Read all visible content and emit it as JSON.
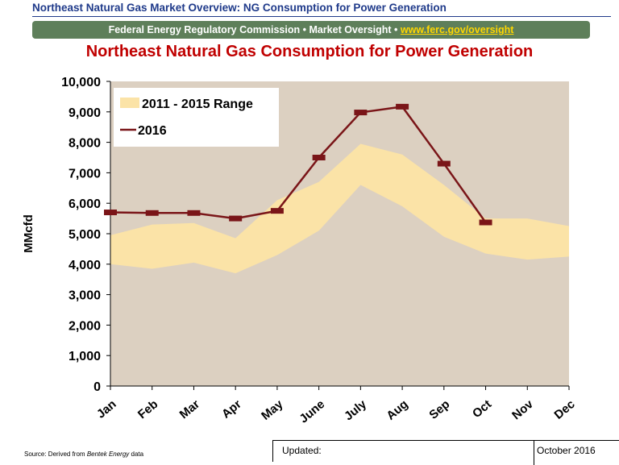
{
  "header": {
    "title": "Northeast Natural Gas Market Overview: NG Consumption for Power Generation",
    "banner_text": "Federal Energy Regulatory Commission • Market Oversight • ",
    "banner_link": "www.ferc.gov/oversight"
  },
  "chart_data": {
    "type": "area",
    "title": "Northeast Natural Gas Consumption for Power Generation",
    "ylabel": "MMcfd",
    "xlabel": "",
    "ylim": [
      0,
      10000
    ],
    "yticks": [
      0,
      1000,
      2000,
      3000,
      4000,
      5000,
      6000,
      7000,
      8000,
      9000,
      10000
    ],
    "ytick_labels": [
      "0",
      "1,000",
      "2,000",
      "3,000",
      "4,000",
      "5,000",
      "6,000",
      "7,000",
      "8,000",
      "9,000",
      "10,000"
    ],
    "categories": [
      "Jan",
      "Feb",
      "Mar",
      "Apr",
      "May",
      "June",
      "July",
      "Aug",
      "Sep",
      "Oct",
      "Nov",
      "Dec"
    ],
    "series": [
      {
        "name": "2011 - 2015 Range",
        "kind": "range",
        "low": [
          4000,
          3850,
          4050,
          3700,
          4300,
          5100,
          6600,
          5900,
          4900,
          4350,
          4150,
          4250
        ],
        "high": [
          4950,
          5300,
          5350,
          4850,
          6100,
          6700,
          7950,
          7600,
          6600,
          5500,
          5500,
          5250
        ]
      },
      {
        "name": "2016",
        "kind": "line",
        "values": [
          5700,
          5680,
          5680,
          5500,
          5750,
          7500,
          8980,
          9170,
          7300,
          5370,
          null,
          null
        ]
      }
    ],
    "legend": {
      "position": "top-left"
    },
    "colors": {
      "range": "#fbe3a7",
      "line": "#7a1518",
      "plot_bg": "#dcd0c1",
      "title": "#c00000"
    },
    "grid": false
  },
  "footer": {
    "source_prefix": "Source: Derived from ",
    "source_brand": "Bentek Energy",
    "source_suffix": " data",
    "updated_label": "Updated:",
    "updated_value": "October 2016"
  }
}
